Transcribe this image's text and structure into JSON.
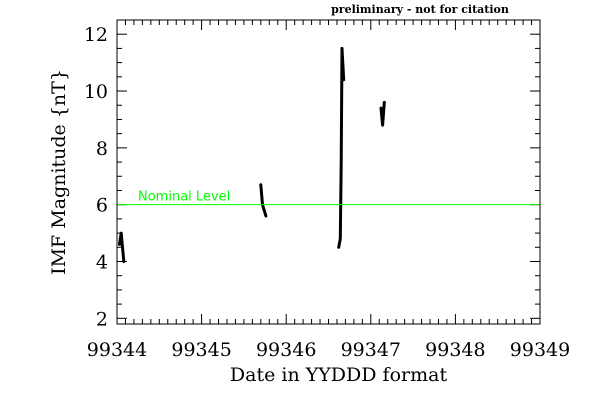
{
  "note": "preliminary - not for citation",
  "chart_data": {
    "type": "line",
    "title": "",
    "xlabel": "Date in YYDDD format",
    "ylabel": "IMF Magnitude {nT}",
    "xlim": [
      99344,
      99349
    ],
    "ylim": [
      1.8,
      12.5
    ],
    "x_ticks": [
      "99344",
      "99345",
      "99346",
      "99347",
      "99348",
      "99349"
    ],
    "y_ticks": [
      "2",
      "4",
      "6",
      "8",
      "10",
      "12"
    ],
    "x_tick_values": [
      99344,
      99345,
      99346,
      99347,
      99348,
      99349
    ],
    "y_tick_values": [
      2,
      4,
      6,
      8,
      10,
      12
    ],
    "grid": false,
    "reference_line": {
      "label": "Nominal Level",
      "y": 6.0,
      "color": "#00ff00"
    },
    "series_color": "#000000",
    "segments": [
      [
        [
          99344.03,
          4.6
        ],
        [
          99344.05,
          5.0
        ],
        [
          99344.08,
          4.0
        ]
      ],
      [
        [
          99345.7,
          6.7
        ],
        [
          99345.72,
          6.0
        ],
        [
          99345.76,
          5.6
        ]
      ],
      [
        [
          99346.62,
          4.5
        ],
        [
          99346.64,
          4.8
        ],
        [
          99346.65,
          7.5
        ],
        [
          99346.66,
          11.5
        ],
        [
          99346.68,
          10.4
        ]
      ],
      [
        [
          99347.12,
          9.4
        ],
        [
          99347.14,
          8.8
        ],
        [
          99347.16,
          9.6
        ]
      ]
    ]
  }
}
